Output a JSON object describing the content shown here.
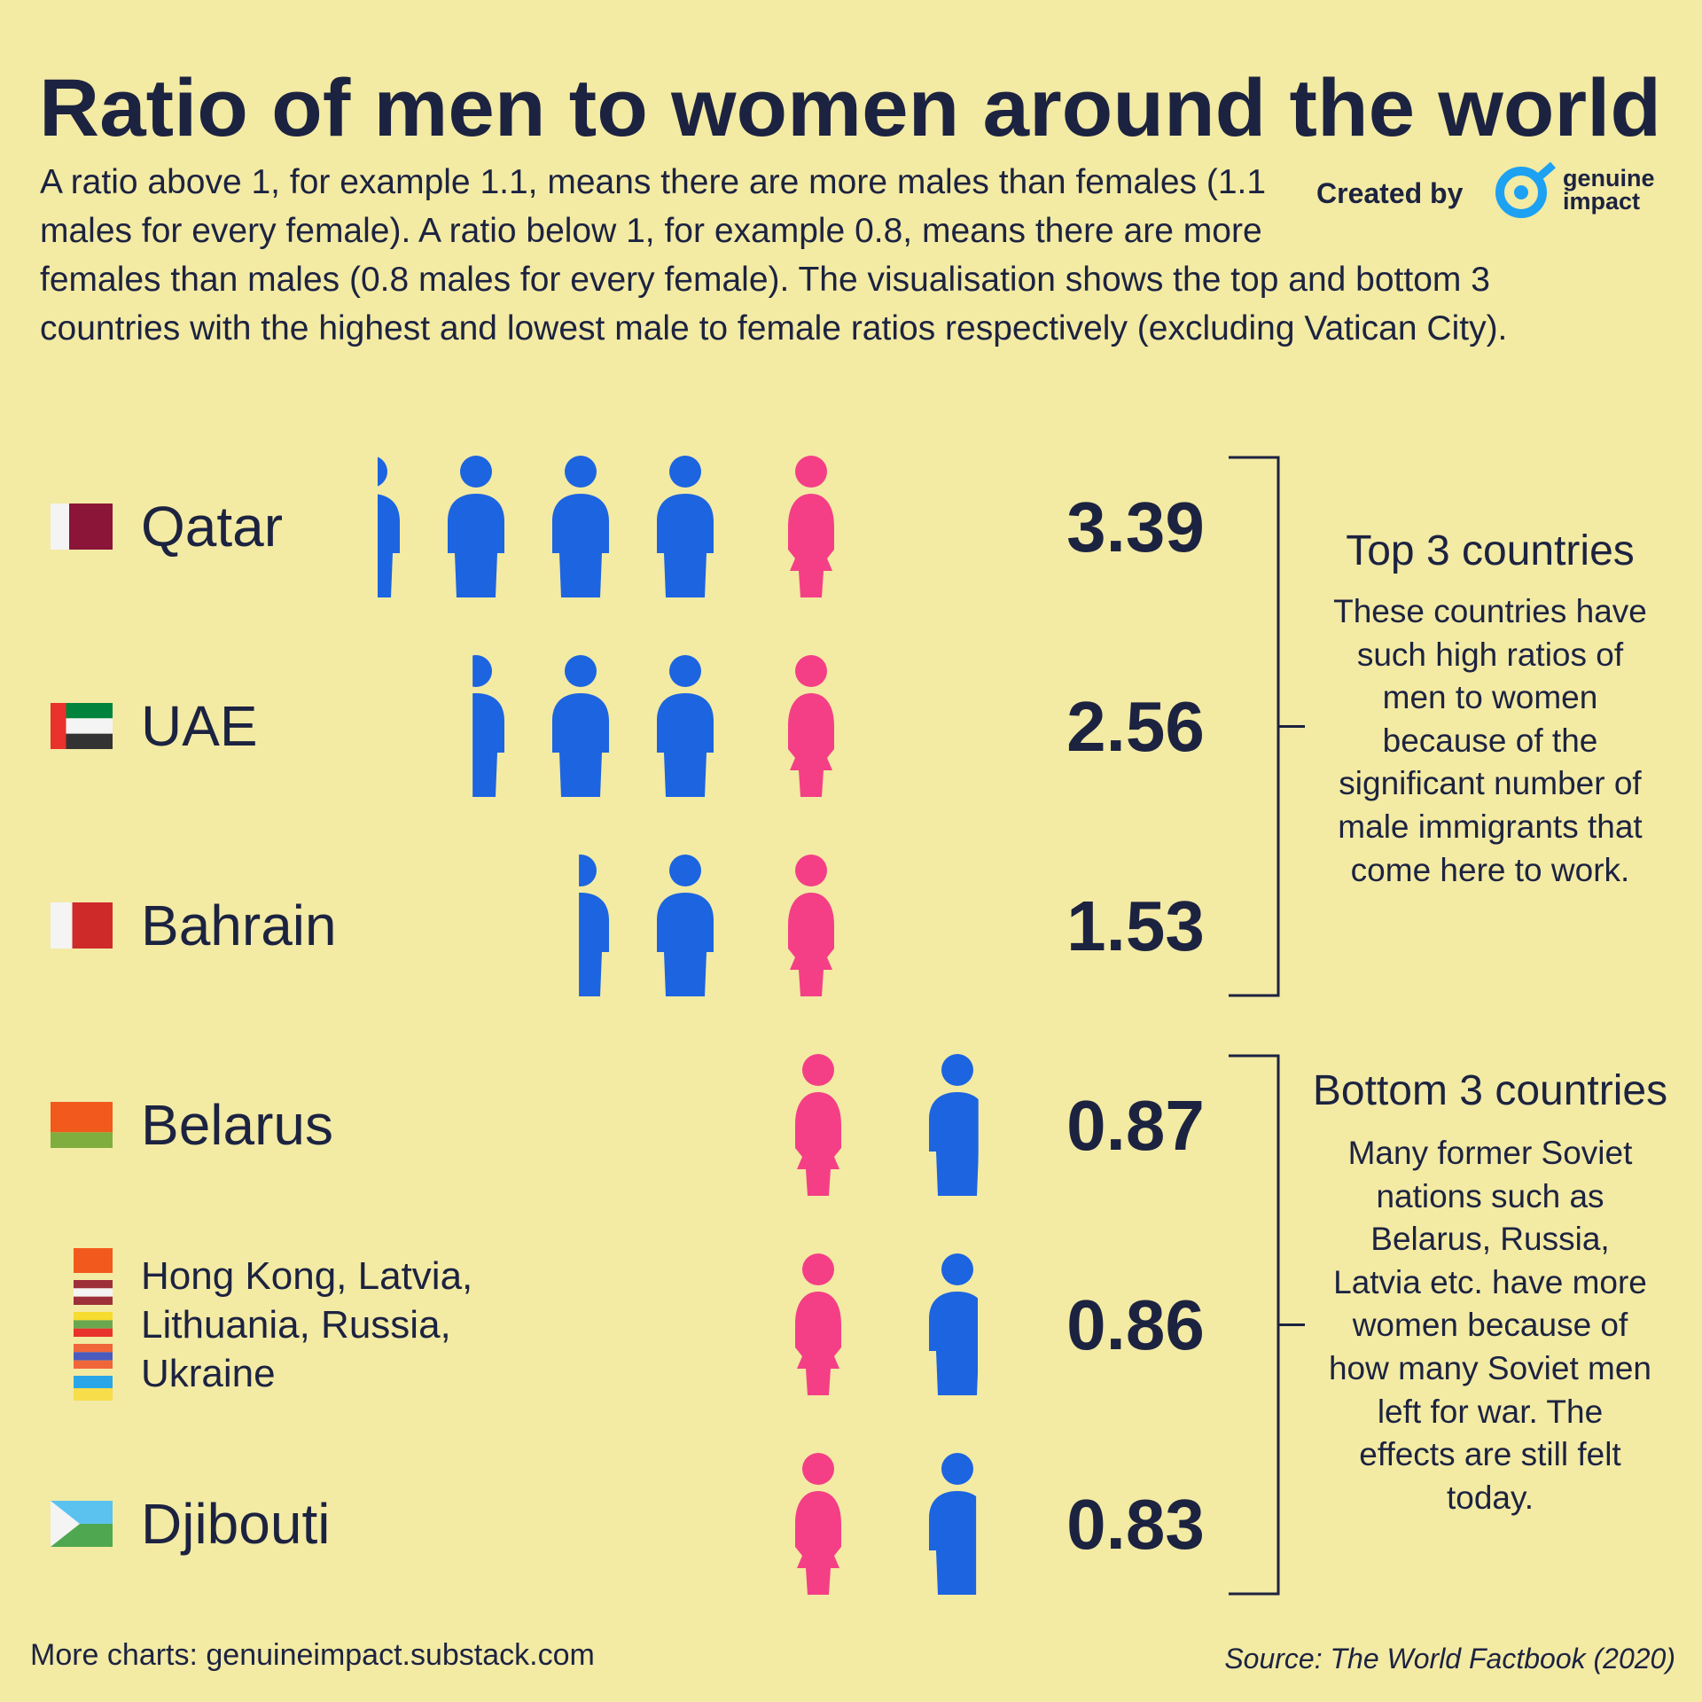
{
  "title": "Ratio of men to women around the world",
  "subtitle": "A ratio above 1, for example 1.1, means there are more males than females (1.1 males for every female). A ratio below 1, for example 0.8, means there are more females than males (0.8 males for every female). The visualisation shows the top and bottom 3 countries with the highest and lowest male to female ratios respectively (excluding Vatican City).",
  "credit": "Created by",
  "logo_text": [
    "genuine",
    "impact"
  ],
  "chart_data": {
    "type": "pictogram",
    "categories": [
      "Qatar",
      "UAE",
      "Bahrain",
      "Belarus",
      "Hong Kong, Latvia, Lithuania, Russia, Ukraine",
      "Djibouti"
    ],
    "values": [
      3.39,
      2.56,
      1.53,
      0.87,
      0.86,
      0.83
    ],
    "male_color": "#1c64e0",
    "female_color": "#f43f86",
    "groups": [
      {
        "title": "Top 3 countries",
        "text": "These countries have such high ratios of men to women because of the significant number of male immigrants that come here to work."
      },
      {
        "title": "Bottom 3 countries",
        "text": "Many former Soviet nations such as Belarus, Russia, Latvia etc. have more women because of how many Soviet men left for war. The effects are still felt today."
      }
    ]
  },
  "footer": "More charts: genuineimpact.substack.com",
  "source": "Source: The World Factbook (2020)"
}
